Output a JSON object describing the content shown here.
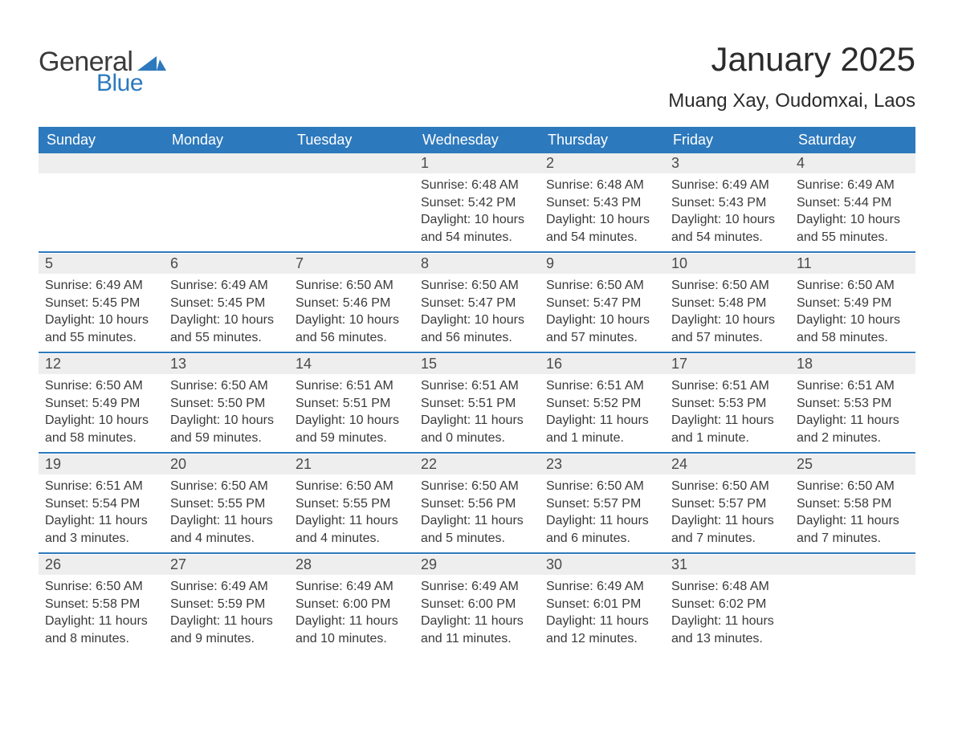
{
  "logo": {
    "word1": "General",
    "word2": "Blue"
  },
  "title": "January 2025",
  "location": "Muang Xay, Oudomxai, Laos",
  "colors": {
    "header_bg": "#2d79bd",
    "header_text": "#ffffff",
    "daynum_bg": "#eeeeee",
    "rule": "#2d79bd",
    "body_text": "#3a3a3a"
  },
  "weekdays": [
    "Sunday",
    "Monday",
    "Tuesday",
    "Wednesday",
    "Thursday",
    "Friday",
    "Saturday"
  ],
  "weeks": [
    [
      null,
      null,
      null,
      {
        "n": "1",
        "sunrise": "6:48 AM",
        "sunset": "5:42 PM",
        "daylight": "10 hours and 54 minutes."
      },
      {
        "n": "2",
        "sunrise": "6:48 AM",
        "sunset": "5:43 PM",
        "daylight": "10 hours and 54 minutes."
      },
      {
        "n": "3",
        "sunrise": "6:49 AM",
        "sunset": "5:43 PM",
        "daylight": "10 hours and 54 minutes."
      },
      {
        "n": "4",
        "sunrise": "6:49 AM",
        "sunset": "5:44 PM",
        "daylight": "10 hours and 55 minutes."
      }
    ],
    [
      {
        "n": "5",
        "sunrise": "6:49 AM",
        "sunset": "5:45 PM",
        "daylight": "10 hours and 55 minutes."
      },
      {
        "n": "6",
        "sunrise": "6:49 AM",
        "sunset": "5:45 PM",
        "daylight": "10 hours and 55 minutes."
      },
      {
        "n": "7",
        "sunrise": "6:50 AM",
        "sunset": "5:46 PM",
        "daylight": "10 hours and 56 minutes."
      },
      {
        "n": "8",
        "sunrise": "6:50 AM",
        "sunset": "5:47 PM",
        "daylight": "10 hours and 56 minutes."
      },
      {
        "n": "9",
        "sunrise": "6:50 AM",
        "sunset": "5:47 PM",
        "daylight": "10 hours and 57 minutes."
      },
      {
        "n": "10",
        "sunrise": "6:50 AM",
        "sunset": "5:48 PM",
        "daylight": "10 hours and 57 minutes."
      },
      {
        "n": "11",
        "sunrise": "6:50 AM",
        "sunset": "5:49 PM",
        "daylight": "10 hours and 58 minutes."
      }
    ],
    [
      {
        "n": "12",
        "sunrise": "6:50 AM",
        "sunset": "5:49 PM",
        "daylight": "10 hours and 58 minutes."
      },
      {
        "n": "13",
        "sunrise": "6:50 AM",
        "sunset": "5:50 PM",
        "daylight": "10 hours and 59 minutes."
      },
      {
        "n": "14",
        "sunrise": "6:51 AM",
        "sunset": "5:51 PM",
        "daylight": "10 hours and 59 minutes."
      },
      {
        "n": "15",
        "sunrise": "6:51 AM",
        "sunset": "5:51 PM",
        "daylight": "11 hours and 0 minutes."
      },
      {
        "n": "16",
        "sunrise": "6:51 AM",
        "sunset": "5:52 PM",
        "daylight": "11 hours and 1 minute."
      },
      {
        "n": "17",
        "sunrise": "6:51 AM",
        "sunset": "5:53 PM",
        "daylight": "11 hours and 1 minute."
      },
      {
        "n": "18",
        "sunrise": "6:51 AM",
        "sunset": "5:53 PM",
        "daylight": "11 hours and 2 minutes."
      }
    ],
    [
      {
        "n": "19",
        "sunrise": "6:51 AM",
        "sunset": "5:54 PM",
        "daylight": "11 hours and 3 minutes."
      },
      {
        "n": "20",
        "sunrise": "6:50 AM",
        "sunset": "5:55 PM",
        "daylight": "11 hours and 4 minutes."
      },
      {
        "n": "21",
        "sunrise": "6:50 AM",
        "sunset": "5:55 PM",
        "daylight": "11 hours and 4 minutes."
      },
      {
        "n": "22",
        "sunrise": "6:50 AM",
        "sunset": "5:56 PM",
        "daylight": "11 hours and 5 minutes."
      },
      {
        "n": "23",
        "sunrise": "6:50 AM",
        "sunset": "5:57 PM",
        "daylight": "11 hours and 6 minutes."
      },
      {
        "n": "24",
        "sunrise": "6:50 AM",
        "sunset": "5:57 PM",
        "daylight": "11 hours and 7 minutes."
      },
      {
        "n": "25",
        "sunrise": "6:50 AM",
        "sunset": "5:58 PM",
        "daylight": "11 hours and 7 minutes."
      }
    ],
    [
      {
        "n": "26",
        "sunrise": "6:50 AM",
        "sunset": "5:58 PM",
        "daylight": "11 hours and 8 minutes."
      },
      {
        "n": "27",
        "sunrise": "6:49 AM",
        "sunset": "5:59 PM",
        "daylight": "11 hours and 9 minutes."
      },
      {
        "n": "28",
        "sunrise": "6:49 AM",
        "sunset": "6:00 PM",
        "daylight": "11 hours and 10 minutes."
      },
      {
        "n": "29",
        "sunrise": "6:49 AM",
        "sunset": "6:00 PM",
        "daylight": "11 hours and 11 minutes."
      },
      {
        "n": "30",
        "sunrise": "6:49 AM",
        "sunset": "6:01 PM",
        "daylight": "11 hours and 12 minutes."
      },
      {
        "n": "31",
        "sunrise": "6:48 AM",
        "sunset": "6:02 PM",
        "daylight": "11 hours and 13 minutes."
      },
      null
    ]
  ],
  "labels": {
    "sunrise": "Sunrise:",
    "sunset": "Sunset:",
    "daylight": "Daylight:"
  }
}
